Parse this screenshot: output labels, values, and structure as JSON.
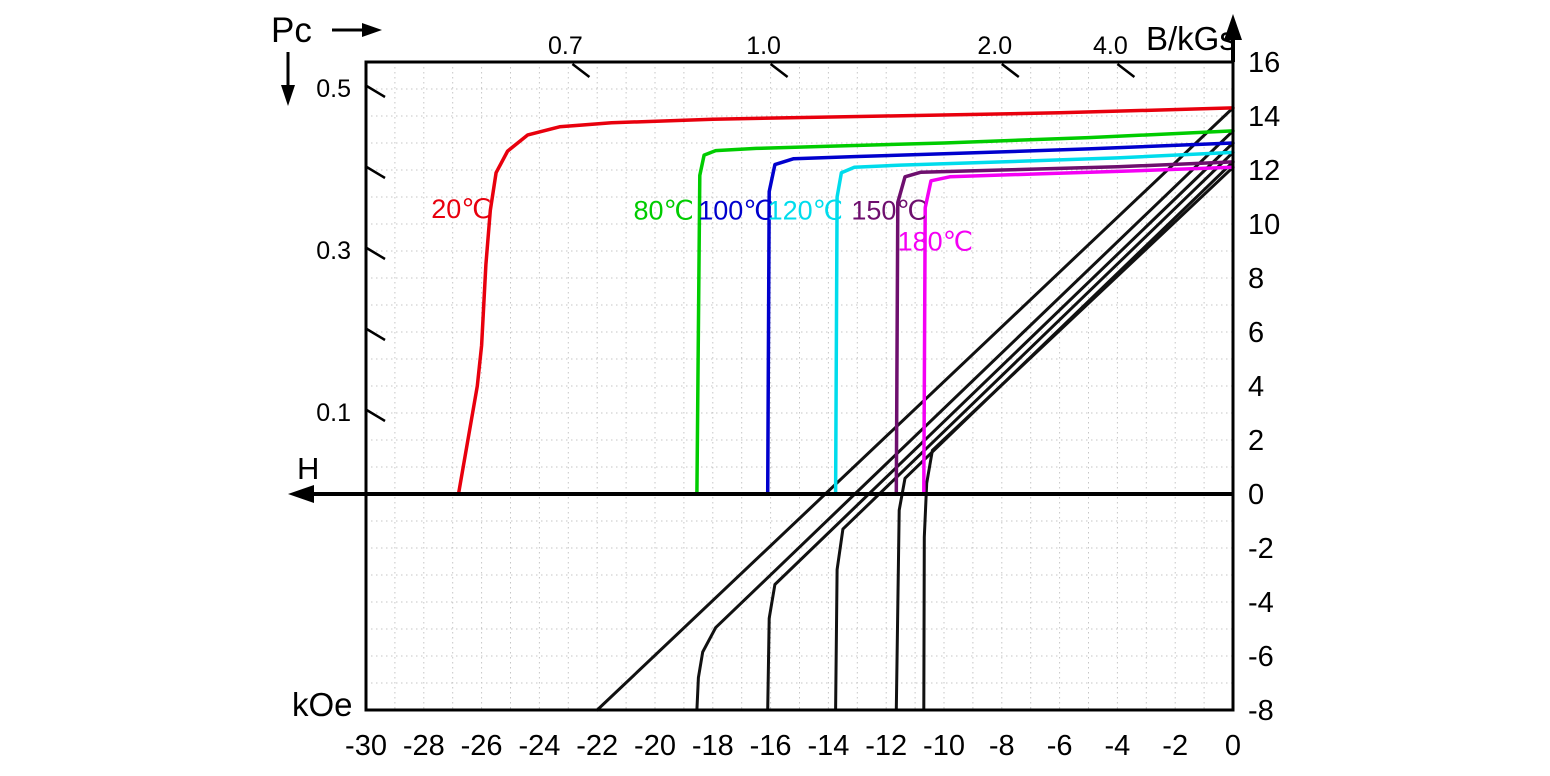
{
  "labels": {
    "pc": "Pc",
    "b_axis": "B/kGs",
    "h_axis": "H",
    "h_unit": "kOe"
  },
  "chart_data": {
    "type": "line",
    "description_visible_text_only": "Demagnetization curves (B vs H) at six temperatures with intrinsic and normal branches plus Pc load-line scale",
    "h_axis": {
      "label": "H",
      "unit": "kOe",
      "min": -30,
      "max": 0,
      "ticks": [
        {
          "v": -30,
          "t": "-30"
        },
        {
          "v": -28,
          "t": "-28"
        },
        {
          "v": -26,
          "t": "-26"
        },
        {
          "v": -24,
          "t": "-24"
        },
        {
          "v": -22,
          "t": "-22"
        },
        {
          "v": -20,
          "t": "-20"
        },
        {
          "v": -18,
          "t": "-18"
        },
        {
          "v": -16,
          "t": "-16"
        },
        {
          "v": -14,
          "t": "-14"
        },
        {
          "v": -12,
          "t": "-12"
        },
        {
          "v": -10,
          "t": "-10"
        },
        {
          "v": -8,
          "t": "-8"
        },
        {
          "v": -6,
          "t": "-6"
        },
        {
          "v": -4,
          "t": "-4"
        },
        {
          "v": -2,
          "t": "-2"
        },
        {
          "v": 0,
          "t": "0"
        }
      ]
    },
    "b_axis": {
      "label": "B/kGs",
      "min": -8,
      "max": 16,
      "ticks": [
        {
          "v": 16,
          "t": "16"
        },
        {
          "v": 14,
          "t": "14"
        },
        {
          "v": 12,
          "t": "12"
        },
        {
          "v": 10,
          "t": "10"
        },
        {
          "v": 8,
          "t": "8"
        },
        {
          "v": 6,
          "t": "6"
        },
        {
          "v": 4,
          "t": "4"
        },
        {
          "v": 2,
          "t": "2"
        },
        {
          "v": 0,
          "t": "0"
        },
        {
          "v": -2,
          "t": "-2"
        },
        {
          "v": -4,
          "t": "-4"
        },
        {
          "v": -6,
          "t": "-6"
        },
        {
          "v": -8,
          "t": "-8"
        }
      ]
    },
    "pc_axis": {
      "label": "Pc",
      "left_ticks": [
        {
          "pc": 0.5,
          "t": "0.5"
        },
        {
          "pc": 0.4,
          "t": ""
        },
        {
          "pc": 0.3,
          "t": "0.3"
        },
        {
          "pc": 0.2,
          "t": ""
        },
        {
          "pc": 0.1,
          "t": "0.1"
        }
      ],
      "top_ticks": [
        {
          "pc": 0.7,
          "t": "0.7"
        },
        {
          "pc": 1.0,
          "t": "1.0"
        },
        {
          "pc": 2.0,
          "t": "2.0"
        },
        {
          "pc": 4.0,
          "t": "4.0"
        }
      ]
    },
    "grid": {
      "on": true,
      "h_step": 1,
      "b_step": 1,
      "color": "#c6c6c6"
    },
    "axis_color": "#000000",
    "normal_curve_color": "#111111",
    "series": [
      {
        "name": "20℃",
        "color": "#e8000d",
        "label": {
          "text": "20℃",
          "h": -26.7,
          "b": 10.55
        },
        "br_kGs": 14.3,
        "hcj_kOe": -26.8,
        "intrinsic": [
          [
            0,
            14.3
          ],
          [
            -6,
            14.12
          ],
          [
            -12,
            14.0
          ],
          [
            -18,
            13.88
          ],
          [
            -21.5,
            13.75
          ],
          [
            -23.3,
            13.6
          ],
          [
            -24.4,
            13.3
          ],
          [
            -25.1,
            12.7
          ],
          [
            -25.5,
            11.9
          ],
          [
            -25.7,
            10.5
          ],
          [
            -25.85,
            8.5
          ],
          [
            -26.0,
            5.5
          ],
          [
            -26.15,
            4.0
          ],
          [
            -26.8,
            0
          ]
        ],
        "normal": [
          [
            0,
            14.3
          ],
          [
            -22.0,
            -8
          ]
        ]
      },
      {
        "name": "80℃",
        "color": "#00cc00",
        "label": {
          "text": "80℃",
          "h": -19.7,
          "b": 10.5
        },
        "br_kGs": 13.45,
        "hcj_kOe": -18.55,
        "intrinsic": [
          [
            0,
            13.45
          ],
          [
            -5,
            13.2
          ],
          [
            -10,
            13.0
          ],
          [
            -14,
            12.88
          ],
          [
            -16.5,
            12.8
          ],
          [
            -17.9,
            12.72
          ],
          [
            -18.3,
            12.55
          ],
          [
            -18.45,
            11.8
          ],
          [
            -18.55,
            0
          ]
        ],
        "normal": [
          [
            0,
            13.45
          ],
          [
            -17.9,
            -4.95
          ],
          [
            -18.35,
            -5.85
          ],
          [
            -18.5,
            -6.8
          ],
          [
            -18.55,
            -8
          ]
        ]
      },
      {
        "name": "100℃",
        "color": "#0000cd",
        "label": {
          "text": "100℃",
          "h": -17.2,
          "b": 10.5
        },
        "br_kGs": 13.0,
        "hcj_kOe": -16.1,
        "intrinsic": [
          [
            0,
            13.0
          ],
          [
            -5,
            12.78
          ],
          [
            -10,
            12.6
          ],
          [
            -13,
            12.5
          ],
          [
            -15.2,
            12.42
          ],
          [
            -15.85,
            12.2
          ],
          [
            -16.05,
            11.2
          ],
          [
            -16.1,
            0
          ]
        ],
        "normal": [
          [
            0,
            13.0
          ],
          [
            -15.85,
            -3.35
          ],
          [
            -16.05,
            -4.6
          ],
          [
            -16.1,
            -8
          ]
        ]
      },
      {
        "name": "120℃",
        "color": "#00dcec",
        "label": {
          "text": "120℃",
          "h": -14.8,
          "b": 10.5
        },
        "br_kGs": 12.65,
        "hcj_kOe": -13.75,
        "intrinsic": [
          [
            0,
            12.65
          ],
          [
            -4,
            12.45
          ],
          [
            -8,
            12.3
          ],
          [
            -11.5,
            12.18
          ],
          [
            -13.1,
            12.1
          ],
          [
            -13.55,
            11.9
          ],
          [
            -13.7,
            11.0
          ],
          [
            -13.75,
            0
          ]
        ],
        "normal": [
          [
            0,
            12.65
          ],
          [
            -13.5,
            -1.3
          ],
          [
            -13.7,
            -2.8
          ],
          [
            -13.75,
            -8
          ]
        ]
      },
      {
        "name": "150℃",
        "color": "#6e0f6e",
        "label": {
          "text": "150℃",
          "h": -11.9,
          "b": 10.5
        },
        "br_kGs": 12.3,
        "hcj_kOe": -11.65,
        "intrinsic": [
          [
            0,
            12.3
          ],
          [
            -4,
            12.12
          ],
          [
            -8,
            12.0
          ],
          [
            -10.8,
            11.92
          ],
          [
            -11.35,
            11.75
          ],
          [
            -11.6,
            10.8
          ],
          [
            -11.65,
            0
          ]
        ],
        "normal": [
          [
            0,
            12.3
          ],
          [
            -11.35,
            0.58
          ],
          [
            -11.55,
            -0.6
          ],
          [
            -11.65,
            -8
          ]
        ]
      },
      {
        "name": "180℃",
        "color": "#f400f4",
        "label": {
          "text": "180℃",
          "h": -10.3,
          "b": 9.35
        },
        "br_kGs": 12.1,
        "hcj_kOe": -10.7,
        "intrinsic": [
          [
            0,
            12.1
          ],
          [
            -4,
            11.95
          ],
          [
            -7,
            11.85
          ],
          [
            -9.8,
            11.75
          ],
          [
            -10.45,
            11.6
          ],
          [
            -10.65,
            10.6
          ],
          [
            -10.7,
            0
          ]
        ],
        "normal": [
          [
            0,
            12.1
          ],
          [
            -10.4,
            1.62
          ],
          [
            -10.6,
            0.4
          ],
          [
            -10.68,
            -1.6
          ],
          [
            -10.7,
            -8
          ]
        ]
      }
    ]
  }
}
